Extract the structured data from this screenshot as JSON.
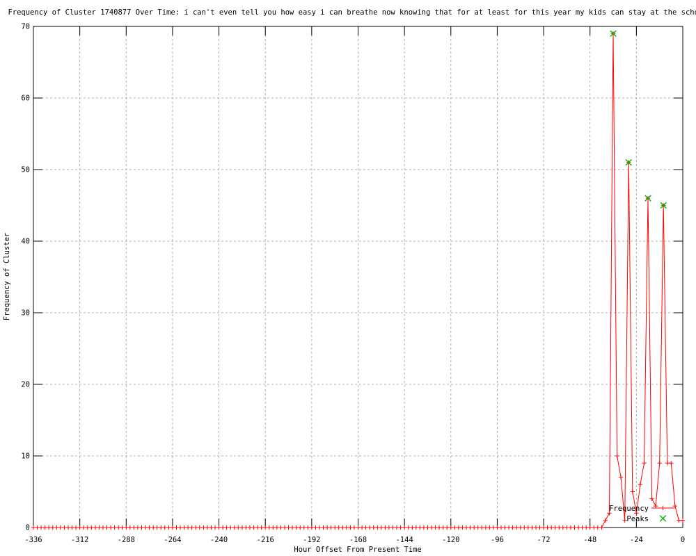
{
  "chart_data": {
    "type": "line",
    "title": "Frequency of Cluster 1740877 Over Time: i can't even tell you how easy i can breathe now knowing that for at least for this year my kids can stay at the school",
    "xlabel": "Hour Offset From Present Time",
    "ylabel": "Frequency of Cluster",
    "xlim": [
      -336,
      0
    ],
    "ylim": [
      0,
      70
    ],
    "x_ticks": [
      -336,
      -312,
      -288,
      -264,
      -240,
      -216,
      -192,
      -168,
      -144,
      -120,
      -96,
      -72,
      -48,
      -24,
      0
    ],
    "y_ticks": [
      0,
      10,
      20,
      30,
      40,
      50,
      60,
      70
    ],
    "grid": true,
    "legend_position": "bottom-right-inside",
    "series": [
      {
        "name": "Frequency",
        "style": "linespoints",
        "marker": "plus",
        "color": "#ff0000",
        "x_start": -336,
        "x_step": 2,
        "values": [
          0,
          0,
          0,
          0,
          0,
          0,
          0,
          0,
          0,
          0,
          0,
          0,
          0,
          0,
          0,
          0,
          0,
          0,
          0,
          0,
          0,
          0,
          0,
          0,
          0,
          0,
          0,
          0,
          0,
          0,
          0,
          0,
          0,
          0,
          0,
          0,
          0,
          0,
          0,
          0,
          0,
          0,
          0,
          0,
          0,
          0,
          0,
          0,
          0,
          0,
          0,
          0,
          0,
          0,
          0,
          0,
          0,
          0,
          0,
          0,
          0,
          0,
          0,
          0,
          0,
          0,
          0,
          0,
          0,
          0,
          0,
          0,
          0,
          0,
          0,
          0,
          0,
          0,
          0,
          0,
          0,
          0,
          0,
          0,
          0,
          0,
          0,
          0,
          0,
          0,
          0,
          0,
          0,
          0,
          0,
          0,
          0,
          0,
          0,
          0,
          0,
          0,
          0,
          0,
          0,
          0,
          0,
          0,
          0,
          0,
          0,
          0,
          0,
          0,
          0,
          0,
          0,
          0,
          0,
          0,
          0,
          0,
          0,
          0,
          0,
          0,
          0,
          0,
          0,
          0,
          0,
          0,
          0,
          0,
          0,
          0,
          0,
          0,
          0,
          0,
          0,
          0,
          0,
          0,
          0,
          0,
          0,
          0,
          1,
          2,
          69,
          10,
          7,
          1,
          51,
          5,
          2,
          6,
          9,
          46,
          4,
          3,
          9,
          45,
          9,
          9,
          3,
          1,
          1
        ]
      },
      {
        "name": "Peaks",
        "style": "points",
        "marker": "cross",
        "color": "#00b400",
        "points": [
          [
            -36,
            69
          ],
          [
            -28,
            51
          ],
          [
            -18,
            46
          ],
          [
            -10,
            45
          ]
        ]
      }
    ]
  },
  "colors": {
    "background": "#ffffff",
    "border": "#000000",
    "grid": "#b0b0b0",
    "frequency_line": "#ff0000",
    "peak_marker": "#00b400"
  }
}
